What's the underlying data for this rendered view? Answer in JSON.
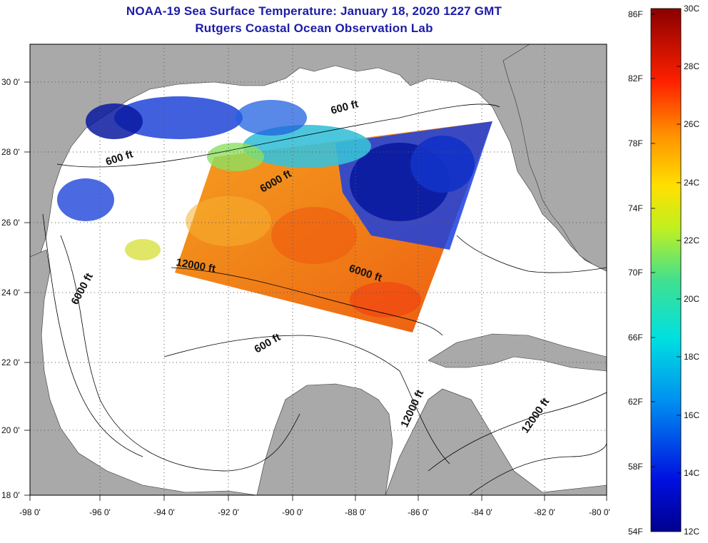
{
  "title": {
    "line1": "NOAA-19 Sea Surface Temperature:  January 18, 2020 1227 GMT",
    "line2": "Rutgers Coastal Ocean Observation Lab"
  },
  "map": {
    "lat_labels": [
      "30 0'",
      "28 0'",
      "26 0'",
      "24 0'",
      "22 0'",
      "20 0'",
      "18 0'"
    ],
    "lon_labels": [
      "-98 0'",
      "-96 0'",
      "-94 0'",
      "-92 0'",
      "-90 0'",
      "-88 0'",
      "-86 0'",
      "-84 0'",
      "-82 0'",
      "-80 0'"
    ],
    "depth_labels": [
      "600 ft",
      "600 ft",
      "6000 ft",
      "12000 ft",
      "6000 ft",
      "6000 ft",
      "600 ft",
      "12000 ft",
      "12000 ft"
    ]
  },
  "colorbar": {
    "fahrenheit_labels": [
      "86F",
      "82F",
      "78F",
      "74F",
      "70F",
      "66F",
      "62F",
      "58F",
      "54F"
    ],
    "celsius_labels": [
      "30C",
      "28C",
      "26C",
      "24C",
      "22C",
      "20C",
      "18C",
      "16C",
      "14C",
      "12C"
    ]
  },
  "colors": {
    "title": "#1c1ca8",
    "land": "#a9a9a9",
    "warm": "#f07a10",
    "cold": "#0a1aa0"
  }
}
